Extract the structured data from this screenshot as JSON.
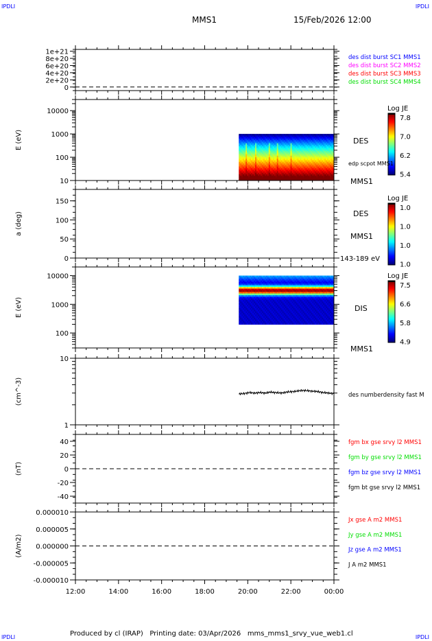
{
  "header": {
    "corner_left": "IPDLI",
    "corner_right": "IPDLI",
    "title": "MMS1",
    "date": "15/Feb/2026 12:00"
  },
  "footer": {
    "text": "Produced by cl (IRAP)   Printing date: 03/Apr/2026   mms_mms1_srvy_vue_web1.cl",
    "corner_left": "IPDLI",
    "corner_right": "IPDLI"
  },
  "colors": {
    "blue": "#0000ff",
    "magenta": "#ff00ff",
    "red": "#ff0000",
    "green": "#00dd00",
    "black": "#000000"
  },
  "chart_data": [
    {
      "type": "line",
      "ylabel": "",
      "yticks": [
        "0",
        "2e+20",
        "4e+20",
        "6e+20",
        "8e+20",
        "1e+21"
      ],
      "ylim": [
        -1e+20,
        1.05e+21
      ],
      "zero_line": true,
      "legend": [
        {
          "name": "des dist burst SC1 MMS1",
          "color": "#0000ff"
        },
        {
          "name": "des dist burst SC2 MMS2",
          "color": "#ff00ff"
        },
        {
          "name": "des dist burst SC3 MMS3",
          "color": "#ff0000"
        },
        {
          "name": "des dist burst SC4 MMS4",
          "color": "#00dd00"
        }
      ]
    },
    {
      "type": "heatmap",
      "ylabel": "E (eV)",
      "yscale": "log",
      "yticks": [
        "10",
        "100",
        "1000",
        "10000"
      ],
      "ylim": [
        10,
        30000
      ],
      "data_start": "19:35",
      "data_erange": [
        10,
        1000
      ],
      "labels": [
        "DES",
        "edp scpot MMS1",
        "MMS1"
      ],
      "colorbar": {
        "title": "Log JE",
        "ticks": [
          "7.8",
          "7.0",
          "6.2",
          "5.4"
        ],
        "range": [
          5.4,
          8.0
        ]
      }
    },
    {
      "type": "heatmap",
      "ylabel": "a (deg)",
      "yticks": [
        "0",
        "50",
        "100",
        "150"
      ],
      "ylim": [
        0,
        180
      ],
      "labels": [
        "DES",
        "MMS1",
        "143-189 eV"
      ],
      "colorbar": {
        "title": "Log JE",
        "ticks": [
          "1.0",
          "1.0",
          "1.0",
          "1.0"
        ]
      }
    },
    {
      "type": "heatmap",
      "ylabel": "E (eV)",
      "yscale": "log",
      "yticks": [
        "100",
        "1000",
        "10000"
      ],
      "ylim": [
        30,
        20000
      ],
      "data_start": "19:35",
      "data_erange": [
        200,
        10000
      ],
      "labels": [
        "DIS",
        "MMS1"
      ],
      "colorbar": {
        "title": "Log JE",
        "ticks": [
          "7.5",
          "6.6",
          "5.8",
          "4.9"
        ],
        "range": [
          4.9,
          7.7
        ]
      }
    },
    {
      "type": "line",
      "ylabel": "(cm^-3)",
      "yscale": "log",
      "yticks": [
        "1",
        "10"
      ],
      "ylim": [
        1,
        10
      ],
      "series": [
        {
          "name": "des numberdensity fast M",
          "color": "#000000",
          "x_start": "19:35",
          "x_end": "00:00",
          "values": [
            2.9,
            2.95,
            3.05,
            3.0,
            3.05,
            3.0,
            3.1,
            3.05,
            3.0,
            3.1,
            3.15,
            3.2,
            3.3,
            3.25,
            3.2,
            3.15,
            3.05,
            3.0,
            2.95
          ]
        }
      ]
    },
    {
      "type": "line",
      "ylabel": "(nT)",
      "yticks": [
        "-40",
        "-20",
        "0",
        "20",
        "40"
      ],
      "ylim": [
        -50,
        50
      ],
      "zero_line": true,
      "legend": [
        {
          "name": "fgm bx gse srvy l2 MMS1",
          "color": "#ff0000"
        },
        {
          "name": "fgm by gse srvy l2 MMS1",
          "color": "#00dd00"
        },
        {
          "name": "fgm bz gse srvy l2 MMS1",
          "color": "#0000ff"
        },
        {
          "name": "fgm bt gse srvy l2 MMS1",
          "color": "#000000"
        }
      ]
    },
    {
      "type": "line",
      "ylabel": "(A/m2)",
      "yticks": [
        "-0.000010",
        "-0.000005",
        "0.000000",
        "0.000005",
        "0.000010"
      ],
      "ylim": [
        -1e-05,
        1e-05
      ],
      "zero_line": true,
      "legend": [
        {
          "name": "Jx gse A m2 MMS1",
          "color": "#ff0000"
        },
        {
          "name": "Jy gse A m2 MMS1",
          "color": "#00dd00"
        },
        {
          "name": "Jz gse A m2 MMS1",
          "color": "#0000ff"
        },
        {
          "name": "J A m2 MMS1",
          "color": "#000000"
        }
      ]
    }
  ],
  "xaxis": {
    "ticks": [
      "12:00",
      "14:00",
      "16:00",
      "18:00",
      "20:00",
      "22:00",
      "00:00"
    ],
    "range_hours": [
      12,
      24
    ]
  }
}
